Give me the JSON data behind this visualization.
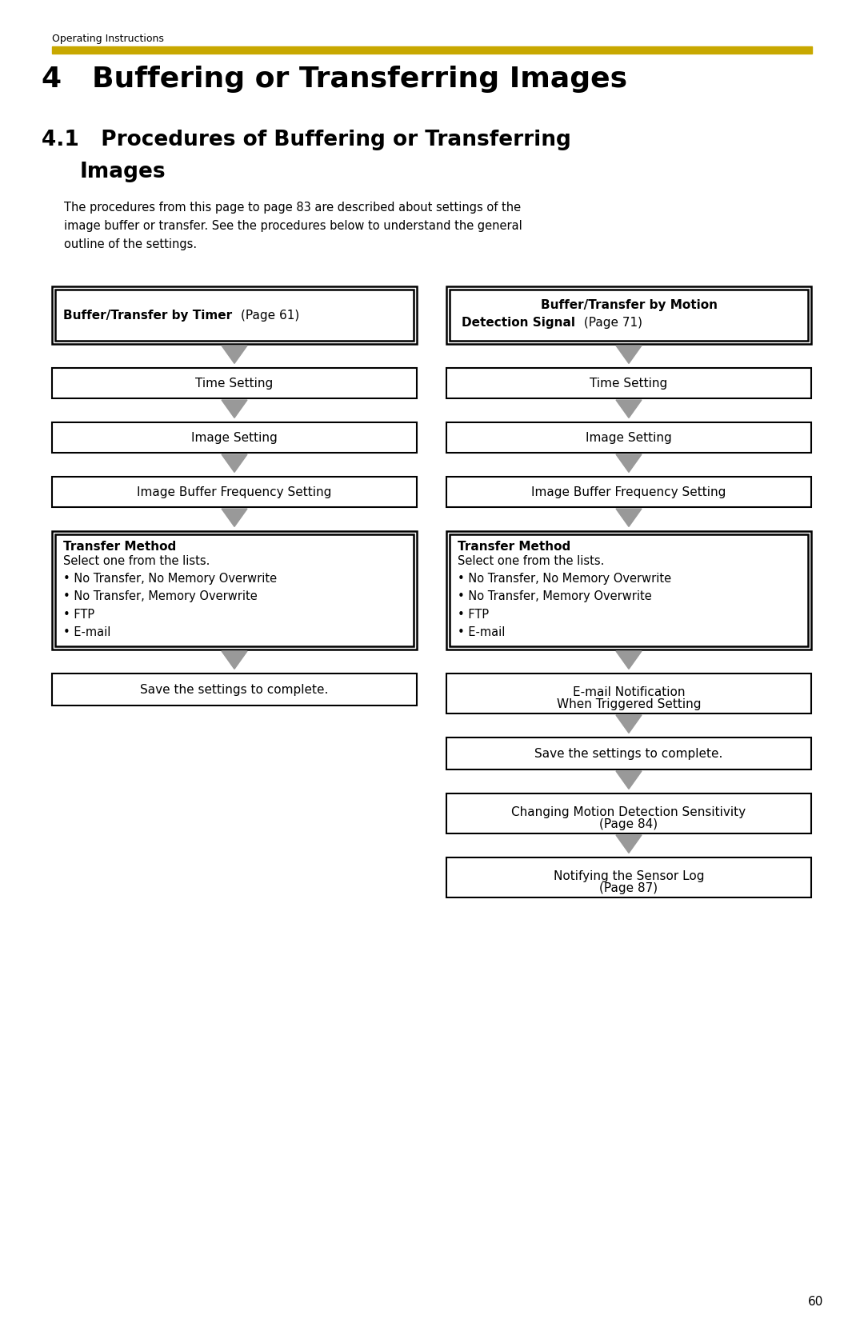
{
  "bg_color": "#ffffff",
  "header_text": "Operating Instructions",
  "yellow_bar_color": "#c8a800",
  "title_main": "4   Buffering or Transferring Images",
  "page_number": "60",
  "body_text": "The procedures from this page to page 83 are described about settings of the\nimage buffer or transfer. See the procedures below to understand the general\noutline of the settings.",
  "left_col": {
    "box0_bold": "Buffer/Transfer by Timer",
    "box0_normal": " (Page 61)",
    "box1": "Time Setting",
    "box2": "Image Setting",
    "box3": "Image Buffer Frequency Setting",
    "box4_title": "Transfer Method",
    "box4_body": "Select one from the lists.\n• No Transfer, No Memory Overwrite\n• No Transfer, Memory Overwrite\n• FTP\n• E-mail",
    "box5": "Save the settings to complete."
  },
  "right_col": {
    "box0_bold1": "Buffer/Transfer by Motion",
    "box0_bold2": "Detection Signal",
    "box0_normal": " (Page 71)",
    "box1": "Time Setting",
    "box2": "Image Setting",
    "box3": "Image Buffer Frequency Setting",
    "box4_title": "Transfer Method",
    "box4_body": "Select one from the lists.\n• No Transfer, No Memory Overwrite\n• No Transfer, Memory Overwrite\n• FTP\n• E-mail",
    "box5_line1": "E-mail Notification",
    "box5_line2": "When Triggered Setting",
    "box6": "Save the settings to complete.",
    "box7_line1": "Changing Motion Detection Sensitivity",
    "box7_line2": "(Page 84)",
    "box8_line1": "Notifying the Sensor Log",
    "box8_line2": "(Page 87)"
  }
}
